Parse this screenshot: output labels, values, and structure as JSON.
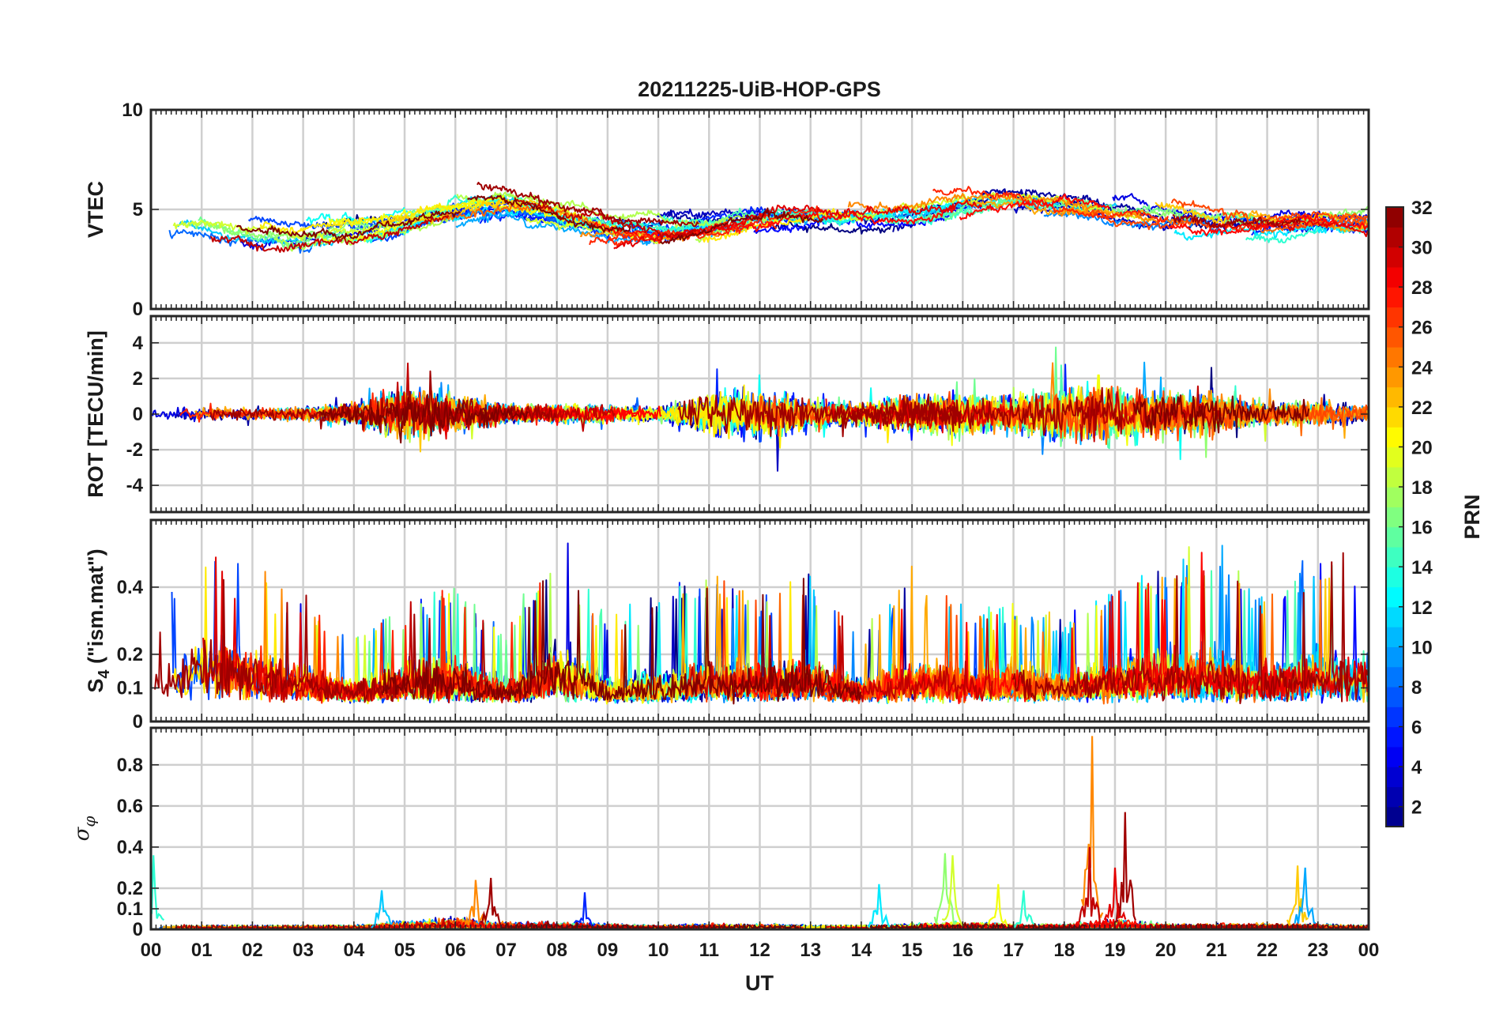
{
  "chart_data": {
    "title": "20211225-UiB-HOP-GPS",
    "type": "line",
    "x": {
      "label": "UT",
      "range_hours": [
        0,
        24
      ],
      "tick_labels": [
        "00",
        "01",
        "02",
        "03",
        "04",
        "05",
        "06",
        "07",
        "08",
        "09",
        "10",
        "11",
        "12",
        "13",
        "14",
        "15",
        "16",
        "17",
        "18",
        "19",
        "20",
        "21",
        "22",
        "23",
        "00"
      ]
    },
    "grid": true,
    "panels": [
      {
        "id": "vtec",
        "ylabel": "VTEC",
        "ylim": [
          0,
          10
        ],
        "yticks": [
          0,
          5,
          10
        ],
        "ytick_labels": [
          "0",
          "5",
          "10"
        ],
        "profile": [
          4.6,
          4.2,
          3.6,
          3.5,
          3.8,
          4.3,
          4.9,
          5.3,
          4.6,
          4.1,
          3.9,
          4.2,
          4.6,
          4.7,
          4.5,
          4.6,
          5.3,
          5.6,
          5.4,
          4.9,
          4.5,
          4.3,
          4.2,
          4.4,
          4.2
        ],
        "noise": 1.1,
        "spike_prob": 0.0,
        "series_count": 32
      },
      {
        "id": "rot",
        "ylabel": "ROT [TECU/min]",
        "ylim": [
          -5.5,
          5.5
        ],
        "yticks": [
          -4,
          -2,
          0,
          2,
          4
        ],
        "ytick_labels": [
          "-4",
          "-2",
          "0",
          "2",
          "4"
        ],
        "profile": [
          0,
          0,
          0,
          0,
          0,
          0,
          0,
          0,
          0,
          0,
          0,
          0,
          0,
          0,
          0,
          0,
          0,
          0,
          0,
          0,
          0,
          0,
          0,
          0,
          0
        ],
        "activity": [
          0.3,
          0.4,
          0.3,
          0.4,
          0.6,
          1.4,
          1.0,
          0.5,
          0.5,
          0.5,
          0.4,
          1.3,
          1.3,
          0.8,
          0.6,
          1.0,
          1.0,
          0.9,
          1.6,
          1.5,
          1.2,
          1.1,
          0.6,
          0.7,
          0.5
        ],
        "series_count": 32
      },
      {
        "id": "s4",
        "ylabel": "S4 (\"ism.mat\")",
        "ylabel_main": "S",
        "ylabel_sub": "4",
        "ylabel_rest": " (\"ism.mat\")",
        "ylim": [
          0,
          0.6
        ],
        "yticks": [
          0,
          0.1,
          0.2,
          0.4
        ],
        "ytick_labels": [
          "0",
          "0.1",
          "0.2",
          "0.4"
        ],
        "profile": [
          0.12,
          0.2,
          0.18,
          0.14,
          0.1,
          0.14,
          0.14,
          0.1,
          0.16,
          0.1,
          0.09,
          0.13,
          0.13,
          0.14,
          0.1,
          0.13,
          0.13,
          0.14,
          0.12,
          0.14,
          0.16,
          0.14,
          0.13,
          0.15,
          0.15
        ],
        "activity": [
          0.12,
          0.25,
          0.22,
          0.16,
          0.12,
          0.16,
          0.2,
          0.12,
          0.28,
          0.14,
          0.2,
          0.22,
          0.18,
          0.22,
          0.12,
          0.22,
          0.16,
          0.16,
          0.14,
          0.2,
          0.22,
          0.26,
          0.18,
          0.25,
          0.22
        ],
        "series_count": 32
      },
      {
        "id": "sigma_phi",
        "ylabel": "σ φ",
        "ylabel_main": "σ",
        "ylabel_sub": "φ",
        "ylim": [
          0,
          0.98
        ],
        "yticks": [
          0,
          0.1,
          0.2,
          0.4,
          0.6,
          0.8
        ],
        "ytick_labels": [
          "0",
          "0.1",
          "0.2",
          "0.4",
          "0.6",
          "0.8"
        ],
        "profile": [
          0.02,
          0.02,
          0.02,
          0.02,
          0.02,
          0.05,
          0.07,
          0.04,
          0.04,
          0.03,
          0.02,
          0.03,
          0.03,
          0.02,
          0.02,
          0.03,
          0.04,
          0.03,
          0.03,
          0.06,
          0.03,
          0.03,
          0.03,
          0.03,
          0.02
        ],
        "events": [
          {
            "hour": 18.55,
            "value": 0.94,
            "prn": 24
          },
          {
            "hour": 18.5,
            "value": 0.4,
            "prn": 30
          },
          {
            "hour": 19.2,
            "value": 0.57,
            "prn": 31
          },
          {
            "hour": 19.0,
            "value": 0.3,
            "prn": 29
          },
          {
            "hour": 6.4,
            "value": 0.24,
            "prn": 24
          },
          {
            "hour": 6.7,
            "value": 0.25,
            "prn": 31
          },
          {
            "hour": 15.65,
            "value": 0.37,
            "prn": 17
          },
          {
            "hour": 15.8,
            "value": 0.36,
            "prn": 19
          },
          {
            "hour": 16.7,
            "value": 0.22,
            "prn": 20
          },
          {
            "hour": 17.2,
            "value": 0.19,
            "prn": 14
          },
          {
            "hour": 14.35,
            "value": 0.22,
            "prn": 12
          },
          {
            "hour": 22.6,
            "value": 0.31,
            "prn": 22
          },
          {
            "hour": 22.75,
            "value": 0.3,
            "prn": 10
          },
          {
            "hour": 4.55,
            "value": 0.19,
            "prn": 11
          },
          {
            "hour": 8.55,
            "value": 0.18,
            "prn": 6
          },
          {
            "hour": 0.05,
            "value": 0.36,
            "prn": 14
          }
        ],
        "series_count": 32
      }
    ],
    "colorbar": {
      "label": "PRN",
      "range": [
        1,
        32
      ],
      "ticks": [
        2,
        4,
        6,
        8,
        10,
        12,
        14,
        16,
        18,
        20,
        22,
        24,
        26,
        28,
        30,
        32
      ],
      "tick_labels": [
        "2",
        "4",
        "6",
        "8",
        "10",
        "12",
        "14",
        "16",
        "18",
        "20",
        "22",
        "24",
        "26",
        "28",
        "30",
        "32"
      ],
      "colormap": "jet"
    }
  }
}
